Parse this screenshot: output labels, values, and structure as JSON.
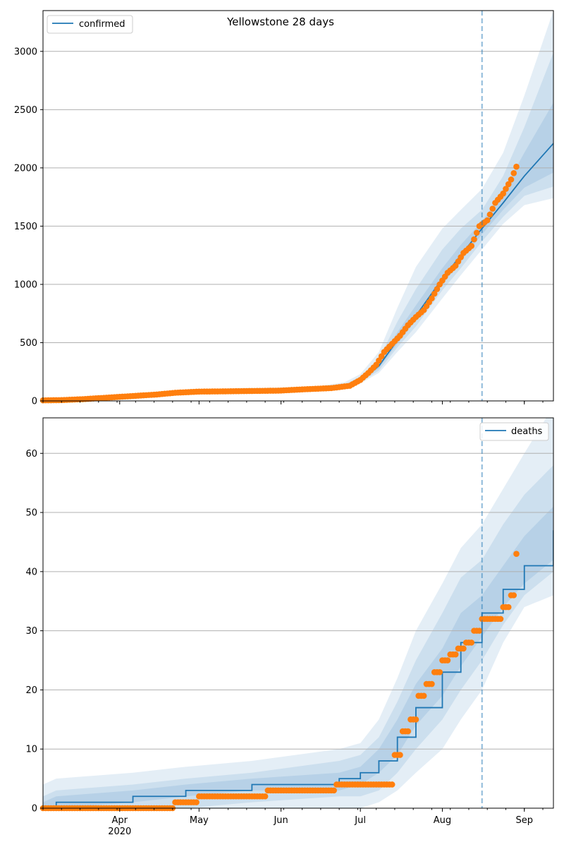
{
  "figure": {
    "title": "Yellowstone 28 days",
    "colors": {
      "model": "#1f77b4",
      "observed": "#ff7f0e",
      "grid": "#b0b0b0"
    }
  },
  "chart_data": [
    {
      "type": "line",
      "name": "confirmed-panel",
      "title": "Yellowstone 28 days",
      "legend": {
        "position": "top-left",
        "entries": [
          "confirmed"
        ]
      },
      "grid": "horizontal",
      "xlim": [
        "2020-03-03",
        "2020-09-12"
      ],
      "ylim": [
        0,
        3350
      ],
      "yticks": [
        0,
        500,
        1000,
        1500,
        2000,
        2500,
        3000
      ],
      "xticks": [
        {
          "date": "2020-04-01",
          "label": "Apr",
          "sub": "2020"
        },
        {
          "date": "2020-05-01",
          "label": "May",
          "sub": ""
        },
        {
          "date": "2020-06-01",
          "label": "Jun",
          "sub": ""
        },
        {
          "date": "2020-07-01",
          "label": "Jul",
          "sub": ""
        },
        {
          "date": "2020-08-01",
          "label": "Aug",
          "sub": ""
        },
        {
          "date": "2020-09-01",
          "label": "Sep",
          "sub": ""
        }
      ],
      "forecast_start": "2020-08-16",
      "model": {
        "x": [
          "2020-03-03",
          "2020-03-15",
          "2020-04-01",
          "2020-04-15",
          "2020-05-01",
          "2020-05-15",
          "2020-06-01",
          "2020-06-15",
          "2020-06-25",
          "2020-07-01",
          "2020-07-08",
          "2020-07-15",
          "2020-07-22",
          "2020-08-01",
          "2020-08-08",
          "2020-08-16",
          "2020-08-24",
          "2020-09-01",
          "2020-09-12"
        ],
        "y": [
          5,
          10,
          35,
          60,
          80,
          88,
          95,
          105,
          120,
          175,
          300,
          520,
          730,
          1050,
          1250,
          1480,
          1700,
          1930,
          2210
        ],
        "bands": [
          {
            "lower": [
              0,
              0,
              20,
              40,
              60,
              68,
              75,
              85,
              100,
              150,
              240,
              420,
              590,
              880,
              1080,
              1300,
              1520,
              1680,
              1740
            ],
            "upper": [
              15,
              20,
              50,
              80,
              100,
              110,
              115,
              125,
              160,
              230,
              420,
              800,
              1150,
              1480,
              1640,
              1820,
              2130,
              2620,
              3350
            ]
          },
          {
            "lower": [
              2,
              4,
              26,
              50,
              68,
              76,
              84,
              94,
              110,
              160,
              260,
              460,
              640,
              950,
              1140,
              1370,
              1580,
              1760,
              1840
            ],
            "upper": [
              10,
              15,
              44,
              70,
              92,
              100,
              106,
              116,
              140,
              210,
              360,
              680,
              960,
              1300,
              1480,
              1640,
              1930,
              2350,
              2990
            ]
          },
          {
            "lower": [
              3,
              7,
              30,
              55,
              74,
              82,
              90,
              100,
              115,
              168,
              280,
              490,
              690,
              1000,
              1200,
              1430,
              1640,
              1830,
              1960
            ],
            "upper": [
              7,
              12,
              40,
              65,
              86,
              94,
              100,
              110,
              128,
              190,
              330,
              590,
              820,
              1140,
              1340,
              1540,
              1800,
              2130,
              2560
            ]
          }
        ]
      },
      "observed": {
        "x": [
          "2020-03-03",
          "2020-03-10",
          "2020-03-18",
          "2020-03-25",
          "2020-04-01",
          "2020-04-08",
          "2020-04-15",
          "2020-04-22",
          "2020-05-01",
          "2020-05-10",
          "2020-05-20",
          "2020-05-31",
          "2020-06-10",
          "2020-06-20",
          "2020-06-27",
          "2020-07-01",
          "2020-07-04",
          "2020-07-07",
          "2020-07-10",
          "2020-07-13",
          "2020-07-16",
          "2020-07-19",
          "2020-07-22",
          "2020-07-25",
          "2020-07-28",
          "2020-07-31",
          "2020-08-03",
          "2020-08-06",
          "2020-08-09",
          "2020-08-12",
          "2020-08-15",
          "2020-08-18",
          "2020-08-21",
          "2020-08-24",
          "2020-08-27",
          "2020-08-29"
        ],
        "y": [
          5,
          7,
          15,
          25,
          35,
          45,
          55,
          70,
          80,
          82,
          85,
          88,
          100,
          110,
          130,
          180,
          240,
          310,
          420,
          490,
          560,
          650,
          720,
          780,
          880,
          1000,
          1100,
          1160,
          1270,
          1330,
          1500,
          1550,
          1700,
          1780,
          1900,
          2010
        ]
      }
    },
    {
      "type": "line",
      "name": "deaths-panel",
      "legend": {
        "position": "top-right",
        "entries": [
          "deaths"
        ]
      },
      "grid": "horizontal",
      "xlim": [
        "2020-03-03",
        "2020-09-12"
      ],
      "ylim": [
        0,
        66
      ],
      "yticks": [
        0,
        10,
        20,
        30,
        40,
        50,
        60
      ],
      "xticks": [
        {
          "date": "2020-04-01",
          "label": "Apr",
          "sub": "2020"
        },
        {
          "date": "2020-05-01",
          "label": "May",
          "sub": ""
        },
        {
          "date": "2020-06-01",
          "label": "Jun",
          "sub": ""
        },
        {
          "date": "2020-07-01",
          "label": "Jul",
          "sub": ""
        },
        {
          "date": "2020-08-01",
          "label": "Aug",
          "sub": ""
        },
        {
          "date": "2020-09-01",
          "label": "Sep",
          "sub": ""
        }
      ],
      "forecast_start": "2020-08-16",
      "model": {
        "x": [
          "2020-03-03",
          "2020-03-08",
          "2020-04-06",
          "2020-04-26",
          "2020-05-21",
          "2020-06-23",
          "2020-07-01",
          "2020-07-08",
          "2020-07-15",
          "2020-07-22",
          "2020-08-01",
          "2020-08-08",
          "2020-08-16",
          "2020-08-24",
          "2020-09-01",
          "2020-09-12"
        ],
        "y": [
          0,
          1,
          2,
          3,
          4,
          5,
          6,
          8,
          12,
          17,
          23,
          28,
          33,
          37,
          41,
          47
        ],
        "bands": [
          {
            "lower": [
              0,
              0,
              0,
              0,
              0,
              0,
              0,
              1,
              3,
              6,
              10,
              15,
              20,
              28,
              34,
              36
            ],
            "upper": [
              4,
              5,
              6,
              7,
              8,
              10,
              11,
              15,
              22,
              30,
              38,
              44,
              48,
              54,
              60,
              68
            ]
          },
          {
            "lower": [
              0,
              0,
              0,
              0,
              1,
              2,
              2,
              3,
              6,
              10,
              15,
              20,
              25,
              31,
              36,
              40
            ],
            "upper": [
              2,
              3,
              4,
              5,
              6,
              8,
              9,
              12,
              18,
              25,
              33,
              39,
              42,
              48,
              53,
              58
            ]
          },
          {
            "lower": [
              0,
              0,
              1,
              2,
              3,
              3,
              4,
              6,
              9,
              14,
              19,
              24,
              29,
              34,
              38,
              42
            ],
            "upper": [
              1,
              2,
              3,
              4,
              5,
              6,
              7,
              10,
              15,
              21,
              27,
              33,
              36,
              41,
              46,
              51
            ]
          }
        ]
      },
      "observed": {
        "x": [
          "2020-03-03",
          "2020-03-10",
          "2020-03-20",
          "2020-04-01",
          "2020-04-10",
          "2020-04-19",
          "2020-04-22",
          "2020-04-27",
          "2020-05-01",
          "2020-05-10",
          "2020-05-20",
          "2020-05-27",
          "2020-06-05",
          "2020-06-15",
          "2020-06-22",
          "2020-06-28",
          "2020-07-05",
          "2020-07-12",
          "2020-07-14",
          "2020-07-17",
          "2020-07-20",
          "2020-07-23",
          "2020-07-26",
          "2020-07-29",
          "2020-08-01",
          "2020-08-04",
          "2020-08-07",
          "2020-08-10",
          "2020-08-13",
          "2020-08-16",
          "2020-08-20",
          "2020-08-24",
          "2020-08-27",
          "2020-08-29"
        ],
        "y": [
          0,
          0,
          0,
          0,
          0,
          0,
          1,
          1,
          2,
          2,
          2,
          3,
          3,
          3,
          4,
          4,
          4,
          4,
          9,
          13,
          15,
          19,
          21,
          23,
          25,
          26,
          27,
          28,
          30,
          32,
          32,
          34,
          36,
          43
        ]
      }
    }
  ]
}
